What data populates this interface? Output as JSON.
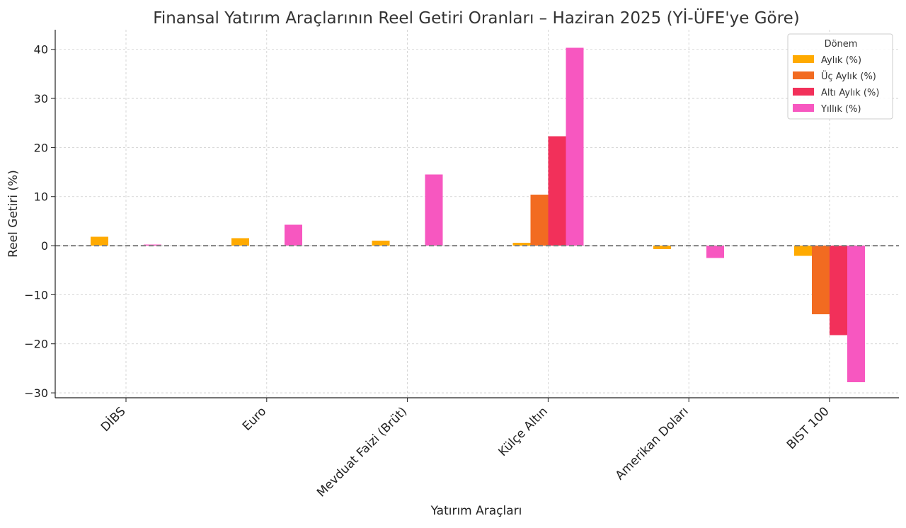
{
  "chart_data": {
    "type": "bar",
    "title": "Finansal Yatırım Araçlarının Reel Getiri Oranları – Haziran 2025 (Yİ-ÜFE'ye Göre)",
    "xlabel": "Yatırım Araçları",
    "ylabel": "Reel Getiri (%)",
    "ylim": [
      -31,
      44
    ],
    "yticks": [
      -30,
      -20,
      -10,
      0,
      10,
      20,
      30,
      40
    ],
    "ytick_labels": [
      "−30",
      "−20",
      "−10",
      "0",
      "10",
      "20",
      "30",
      "40"
    ],
    "grid": true,
    "legend_title": "Dönem",
    "legend_position": "top-right",
    "reference_line": 0,
    "categories": [
      "DİBS",
      "Euro",
      "Mevduat Faizi (Brüt)",
      "Külçe Altın",
      "Amerikan Doları",
      "BIST 100"
    ],
    "series": [
      {
        "name": "Aylık (%)",
        "color": "#FFAA00",
        "values": [
          1.8,
          1.5,
          1.0,
          0.6,
          -0.7,
          -2.1
        ]
      },
      {
        "name": "Üç Aylık (%)",
        "color": "#F26B21",
        "values": [
          0.0,
          0.0,
          0.0,
          10.4,
          0.0,
          -14.0
        ]
      },
      {
        "name": "Altı Aylık (%)",
        "color": "#F2305A",
        "values": [
          0.0,
          0.0,
          0.0,
          22.3,
          0.0,
          -18.2
        ]
      },
      {
        "name": "Yıllık (%)",
        "color": "#F757C0",
        "values": [
          0.2,
          4.3,
          14.5,
          40.3,
          -2.5,
          -27.8
        ]
      }
    ]
  }
}
